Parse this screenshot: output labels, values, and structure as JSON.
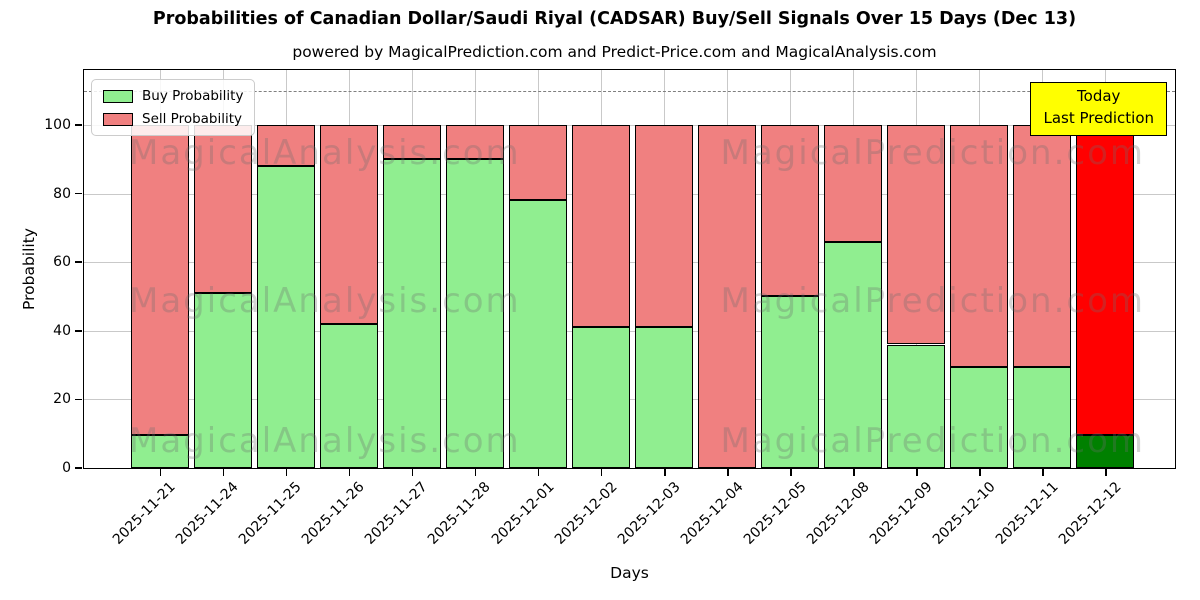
{
  "header": {
    "title": "Probabilities of Canadian Dollar/Saudi Riyal (CADSAR) Buy/Sell Signals Over 15 Days (Dec 13)",
    "subtitle": "powered by MagicalPrediction.com and Predict-Price.com and MagicalAnalysis.com"
  },
  "legend": {
    "items": [
      {
        "label": "Buy Probability",
        "color": "#90ee90"
      },
      {
        "label": "Sell Probability",
        "color": "#f08080"
      }
    ]
  },
  "annotation": {
    "line1": "Today",
    "line2": "Last Prediction",
    "bg_color": "#ffff00"
  },
  "axes": {
    "xlabel": "Days",
    "ylabel": "Probability",
    "yticks": [
      0,
      20,
      40,
      60,
      80,
      100
    ],
    "ymax": 116,
    "dashed_line_y": 110,
    "grid": true
  },
  "watermarks": [
    "MagicalAnalysis.com",
    "MagicalPrediction.com"
  ],
  "chart_data": {
    "type": "bar",
    "stacked": true,
    "title": "Probabilities of Canadian Dollar/Saudi Riyal (CADSAR) Buy/Sell Signals Over 15 Days (Dec 13)",
    "xlabel": "Days",
    "ylabel": "Probability",
    "ylim": [
      0,
      116
    ],
    "legend_position": "upper-left",
    "categories": [
      "2025-11-21",
      "2025-11-24",
      "2025-11-25",
      "2025-11-26",
      "2025-11-27",
      "2025-11-28",
      "2025-12-01",
      "2025-12-02",
      "2025-12-03",
      "2025-12-04",
      "2025-12-05",
      "2025-12-08",
      "2025-12-09",
      "2025-12-10",
      "2025-12-11",
      "2025-12-12"
    ],
    "series": [
      {
        "name": "Buy Probability",
        "color": "#90ee90",
        "values": [
          9.5,
          51,
          88,
          42,
          90,
          90,
          78,
          41,
          41,
          0,
          50,
          66,
          36,
          29.5,
          29.5,
          9.5
        ]
      },
      {
        "name": "Sell Probability",
        "color": "#f08080",
        "values": [
          90.5,
          49,
          12,
          58,
          10,
          10,
          22,
          59,
          59,
          100,
          50,
          34,
          64,
          70.5,
          70.5,
          90.5
        ]
      }
    ],
    "last_bar_colors": {
      "buy": "#008000",
      "sell": "#ff0000"
    },
    "bar_edge_color": "#000000",
    "annotation_threshold_line": 110
  }
}
